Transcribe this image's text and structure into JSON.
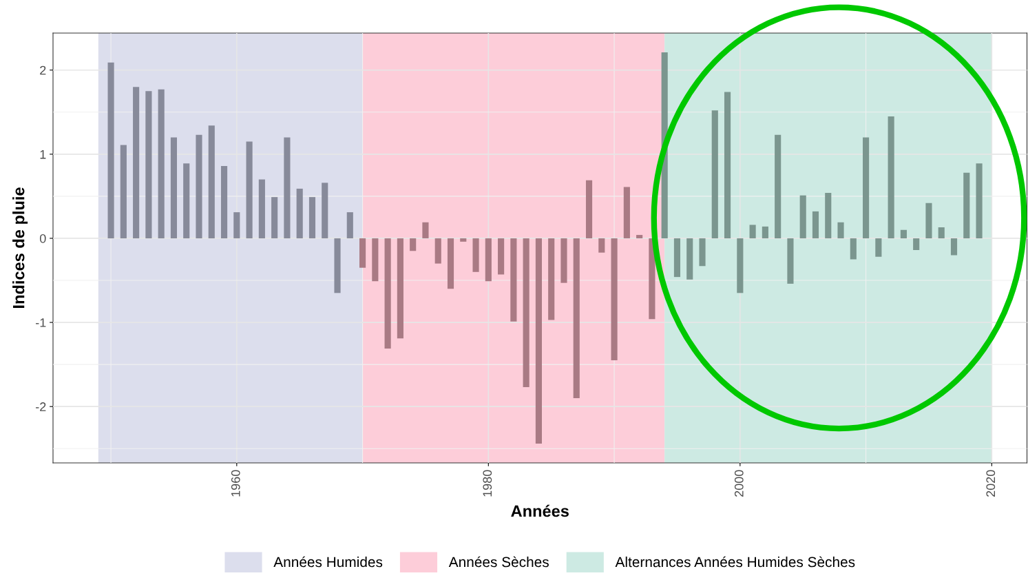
{
  "chart_data": {
    "type": "bar",
    "xlabel": "Années",
    "ylabel": "Indices de pluie",
    "x": [
      1950,
      1951,
      1952,
      1953,
      1954,
      1955,
      1956,
      1957,
      1958,
      1959,
      1960,
      1961,
      1962,
      1963,
      1964,
      1965,
      1966,
      1967,
      1968,
      1969,
      1970,
      1971,
      1972,
      1973,
      1974,
      1975,
      1976,
      1977,
      1978,
      1979,
      1980,
      1981,
      1982,
      1983,
      1984,
      1985,
      1986,
      1987,
      1988,
      1989,
      1990,
      1991,
      1992,
      1993,
      1994,
      1995,
      1996,
      1997,
      1998,
      1999,
      2000,
      2001,
      2002,
      2003,
      2004,
      2005,
      2006,
      2007,
      2008,
      2009,
      2010,
      2011,
      2012,
      2013,
      2014,
      2015,
      2016,
      2017,
      2018,
      2019
    ],
    "values": [
      2.09,
      1.11,
      1.8,
      1.75,
      1.77,
      1.2,
      0.89,
      1.23,
      1.34,
      0.86,
      0.31,
      1.15,
      0.7,
      0.49,
      1.2,
      0.59,
      0.49,
      0.66,
      -0.65,
      0.31,
      -0.35,
      -0.51,
      -1.31,
      -1.19,
      -0.15,
      0.19,
      -0.3,
      -0.6,
      -0.04,
      -0.4,
      -0.51,
      -0.43,
      -0.99,
      -1.77,
      -2.44,
      -0.97,
      -0.53,
      -1.9,
      0.69,
      -0.17,
      -1.45,
      0.61,
      0.04,
      -0.96,
      2.21,
      -0.46,
      -0.49,
      -0.33,
      1.52,
      1.74,
      -0.65,
      0.16,
      0.14,
      1.23,
      -0.54,
      0.51,
      0.32,
      0.54,
      0.19,
      -0.25,
      1.2,
      -0.22,
      1.45,
      0.1,
      -0.14,
      0.42,
      0.13,
      -0.2,
      0.78,
      0.89
    ],
    "colors": [
      "#878a9a",
      "#878a9a",
      "#878a9a",
      "#878a9a",
      "#878a9a",
      "#878a9a",
      "#878a9a",
      "#878a9a",
      "#878a9a",
      "#878a9a",
      "#878a9a",
      "#878a9a",
      "#878a9a",
      "#878a9a",
      "#878a9a",
      "#878a9a",
      "#878a9a",
      "#878a9a",
      "#878a9a",
      "#878a9a",
      "#a97a84",
      "#a97a84",
      "#a97a84",
      "#a97a84",
      "#a97a84",
      "#a97a84",
      "#a97a84",
      "#a97a84",
      "#a97a84",
      "#a97a84",
      "#a97a84",
      "#a97a84",
      "#a97a84",
      "#a97a84",
      "#a97a84",
      "#a97a84",
      "#a97a84",
      "#a97a84",
      "#a97a84",
      "#a97a84",
      "#a97a84",
      "#a97a84",
      "#a97a84",
      "#a97a84",
      "#7b968f",
      "#7b968f",
      "#7b968f",
      "#7b968f",
      "#7b968f",
      "#7b968f",
      "#7b968f",
      "#7b968f",
      "#7b968f",
      "#7b968f",
      "#7b968f",
      "#7b968f",
      "#7b968f",
      "#7b968f",
      "#7b968f",
      "#7b968f",
      "#7b968f",
      "#7b968f",
      "#7b968f",
      "#7b968f",
      "#7b968f",
      "#7b968f",
      "#7b968f",
      "#7b968f",
      "#7b968f",
      "#7b968f"
    ],
    "xlim": [
      1945.4,
      2022.8
    ],
    "ylim": [
      -2.67,
      2.44
    ],
    "xticks": [
      1960,
      1980,
      2000,
      2020
    ],
    "yticks": [
      -2,
      -1,
      0,
      1,
      2
    ],
    "bands": [
      {
        "axis": "x",
        "from": 1949,
        "to": 1970,
        "label": "Années Humides",
        "color": "#dcdeed"
      },
      {
        "axis": "x",
        "from": 1970,
        "to": 1994,
        "label": "Années Sèches",
        "color": "#fdcdd9"
      },
      {
        "axis": "x",
        "from": 1994,
        "to": 2020,
        "label": "Alternances Années Humides Sèches",
        "color": "#cdeae3"
      }
    ],
    "grid": true,
    "legend": "bottom"
  }
}
